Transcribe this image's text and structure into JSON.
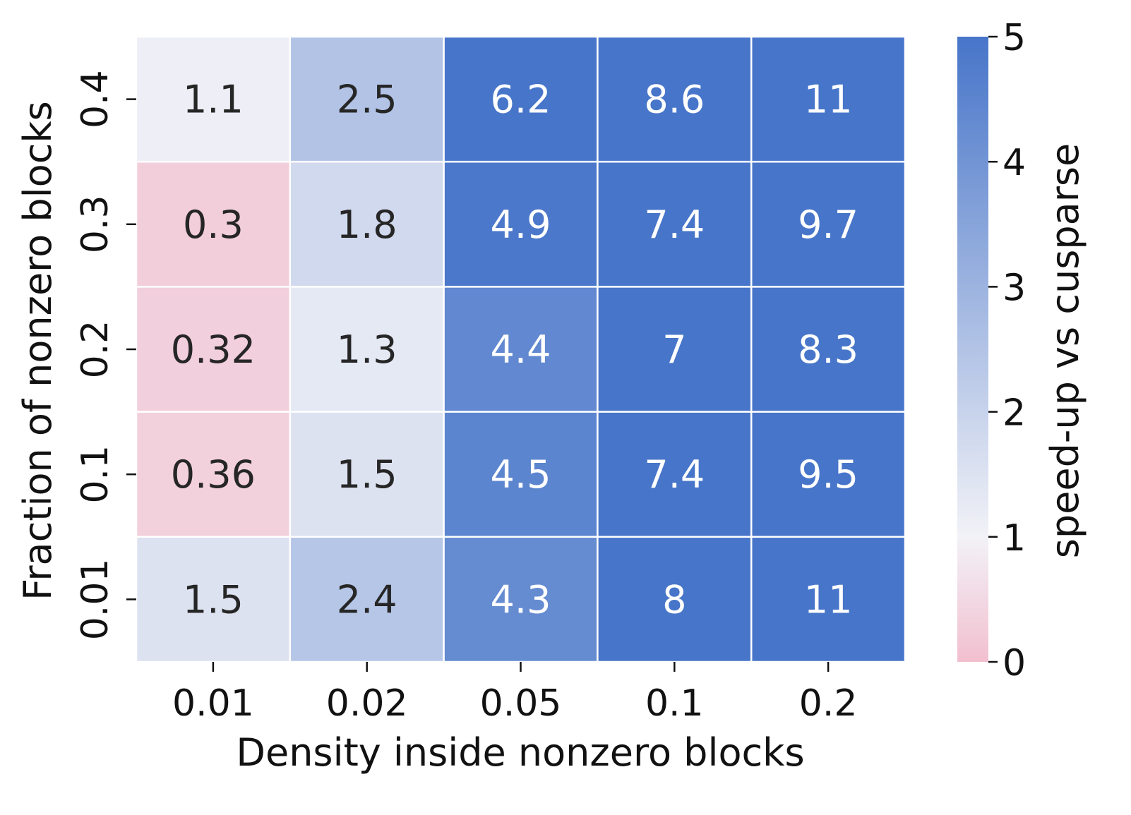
{
  "chart_data": {
    "type": "heatmap",
    "title": "",
    "xlabel": "Density inside nonzero blocks",
    "ylabel": "Fraction of nonzero blocks",
    "x_categories": [
      "0.01",
      "0.02",
      "0.05",
      "0.1",
      "0.2"
    ],
    "y_categories": [
      "0.4",
      "0.3",
      "0.2",
      "0.1",
      "0.01"
    ],
    "values": [
      [
        1.1,
        2.5,
        6.2,
        8.6,
        11
      ],
      [
        0.3,
        1.8,
        4.9,
        7.4,
        9.7
      ],
      [
        0.32,
        1.3,
        4.4,
        7,
        8.3
      ],
      [
        0.36,
        1.5,
        4.5,
        7.4,
        9.5
      ],
      [
        1.5,
        2.4,
        4.3,
        8,
        11
      ]
    ],
    "annotations": [
      [
        "1.1",
        "2.5",
        "6.2",
        "8.6",
        "11"
      ],
      [
        "0.3",
        "1.8",
        "4.9",
        "7.4",
        "9.7"
      ],
      [
        "0.32",
        "1.3",
        "4.4",
        "7",
        "8.3"
      ],
      [
        "0.36",
        "1.5",
        "4.5",
        "7.4",
        "9.5"
      ],
      [
        "1.5",
        "2.4",
        "4.3",
        "8",
        "11"
      ]
    ],
    "colorbar": {
      "label": "speed-up vs cusparse",
      "range": [
        0,
        5
      ],
      "ticks": [
        "0",
        "1",
        "2",
        "3",
        "4",
        "5"
      ],
      "center": 1,
      "low_color": "#f2bfcf",
      "mid_color": "#f2f2f7",
      "high_color": "#4775c9"
    },
    "dark_text_color": "#262626",
    "light_text_color": "#ffffff",
    "grid": false
  }
}
